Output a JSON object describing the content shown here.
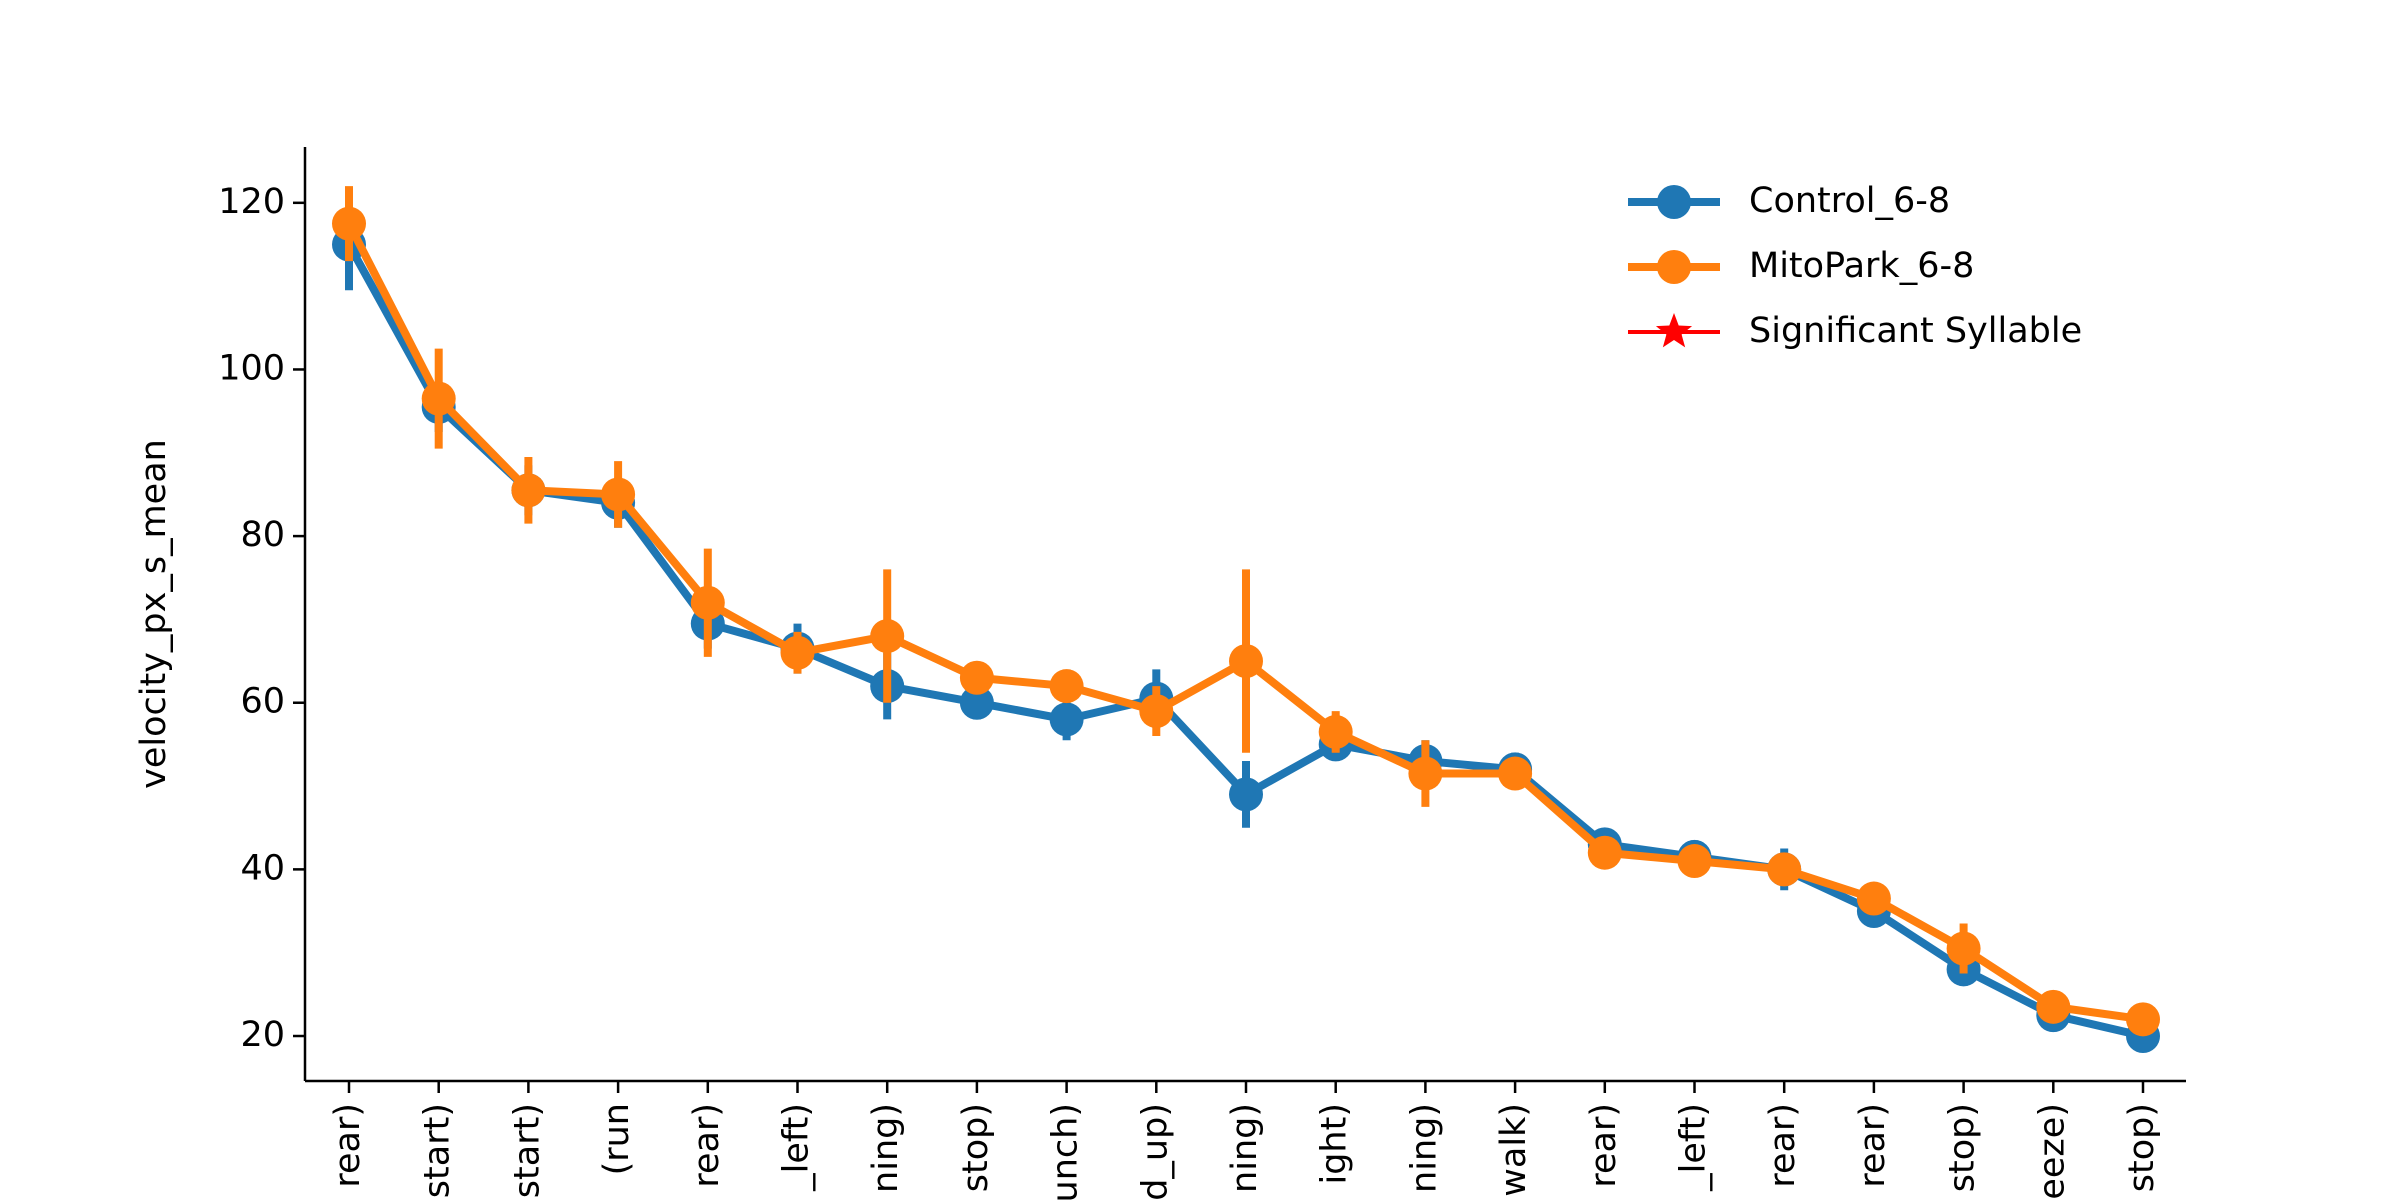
{
  "chart_data": {
    "type": "line",
    "ylabel": "velocity_px_s_mean",
    "categories": [
      "rear)",
      "start)",
      "start)",
      "(run",
      "rear)",
      "_left)",
      "ning)",
      "stop)",
      "unch)",
      "d_up)",
      "ning)",
      "ight)",
      "ning)",
      "walk)",
      "rear)",
      "_left)",
      "rear)",
      "rear)",
      "stop)",
      "eeze)",
      "stop)"
    ],
    "series": [
      {
        "name": "Control_6-8",
        "color": "#1f77b4",
        "marker": "circle",
        "values": [
          115,
          95.5,
          85.5,
          84,
          69.5,
          66.5,
          62,
          60,
          58,
          60.5,
          49,
          55,
          53,
          52,
          43,
          41.5,
          40,
          35,
          28,
          22.5,
          20
        ],
        "errors": [
          5.5,
          3,
          3,
          3,
          3,
          3,
          4,
          2,
          2.5,
          3.5,
          4,
          2,
          2.5,
          2,
          1.5,
          2,
          2.5,
          1.5,
          2,
          1.5,
          1
        ]
      },
      {
        "name": "MitoPark_6-8",
        "color": "#ff7f0e",
        "marker": "circle",
        "values": [
          117.5,
          96.5,
          85.5,
          85,
          72,
          66,
          68,
          63,
          62,
          59,
          65,
          56.5,
          51.5,
          51.5,
          42,
          41,
          40,
          36.5,
          30.5,
          23.5,
          22
        ],
        "errors": [
          4.5,
          6,
          4,
          4,
          6.5,
          2.5,
          8,
          1.5,
          2,
          3,
          11,
          2.5,
          4,
          1.5,
          1.5,
          1.5,
          2,
          1.5,
          3,
          1,
          1
        ]
      },
      {
        "name": "Significant Syllable",
        "color": "#ff0000",
        "marker": "star",
        "values": [
          null,
          null,
          null,
          null,
          null,
          null,
          null,
          null,
          null,
          null,
          null,
          null,
          null,
          null,
          null,
          null,
          null,
          null,
          null,
          null,
          null
        ]
      }
    ],
    "ylim": [
      14.6,
      126.7
    ],
    "yticks": [
      20,
      40,
      60,
      80,
      100,
      120
    ],
    "legend": "upper right"
  }
}
